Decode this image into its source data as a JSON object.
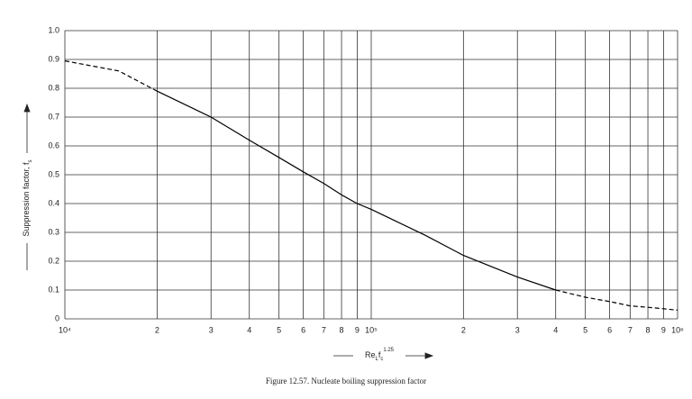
{
  "chart_data": {
    "type": "line",
    "x_label": [
      "Re",
      "L",
      "f",
      "c",
      "1.25"
    ],
    "y_label": [
      "Suppression factor, f",
      "s"
    ],
    "caption": "Figure 12.57.   Nucleate boiling suppression factor",
    "xscale": "log",
    "grid": true,
    "color": "#000000",
    "xlim": [
      10000,
      1000000
    ],
    "ylim": [
      0,
      1
    ],
    "xticks": [
      {
        "value": 10000,
        "label": "10⁴"
      },
      {
        "value": 20000,
        "label": "2"
      },
      {
        "value": 30000,
        "label": "3"
      },
      {
        "value": 40000,
        "label": "4"
      },
      {
        "value": 50000,
        "label": "5"
      },
      {
        "value": 60000,
        "label": "6"
      },
      {
        "value": 70000,
        "label": "7"
      },
      {
        "value": 80000,
        "label": "8"
      },
      {
        "value": 90000,
        "label": "9"
      },
      {
        "value": 100000,
        "label": "10⁵"
      },
      {
        "value": 200000,
        "label": "2"
      },
      {
        "value": 300000,
        "label": "3"
      },
      {
        "value": 400000,
        "label": "4"
      },
      {
        "value": 500000,
        "label": "5"
      },
      {
        "value": 600000,
        "label": "6"
      },
      {
        "value": 700000,
        "label": "7"
      },
      {
        "value": 800000,
        "label": "8"
      },
      {
        "value": 900000,
        "label": "9"
      },
      {
        "value": 1000000,
        "label": "10⁶"
      }
    ],
    "yticks": [
      0,
      0.1,
      0.2,
      0.3,
      0.4,
      0.5,
      0.6,
      0.7,
      0.8,
      0.9,
      {
        "value": 1,
        "label": "1.0"
      }
    ],
    "series": [
      {
        "line_style": "dashed",
        "x": [
          10000,
          15000,
          20000
        ],
        "values": [
          0.895,
          0.86,
          0.79
        ]
      },
      {
        "line_style": "solid",
        "x": [
          20000,
          30000,
          40000,
          50000,
          60000,
          70000,
          80000,
          90000,
          100000,
          150000,
          200000,
          300000,
          400000
        ],
        "values": [
          0.79,
          0.7,
          0.62,
          0.56,
          0.51,
          0.47,
          0.43,
          0.4,
          0.38,
          0.29,
          0.22,
          0.145,
          0.1
        ]
      },
      {
        "line_style": "dashed",
        "x": [
          400000,
          500000,
          600000,
          700000,
          800000,
          900000,
          1000000
        ],
        "values": [
          0.1,
          0.075,
          0.06,
          0.045,
          0.04,
          0.035,
          0.03
        ]
      }
    ]
  }
}
